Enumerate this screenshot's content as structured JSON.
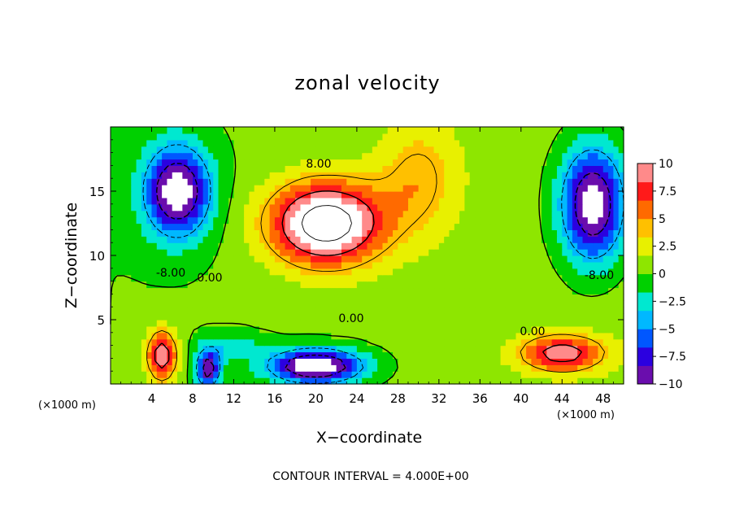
{
  "chart_data": {
    "type": "heatmap",
    "title": "zonal velocity",
    "xlabel": "X−coordinate",
    "ylabel": "Z−coordinate",
    "x_unit": "(×1000 m)",
    "y_unit": "(×1000 m)",
    "xlim": [
      0,
      50
    ],
    "ylim": [
      0,
      20
    ],
    "x_ticks": [
      4,
      8,
      12,
      16,
      20,
      24,
      28,
      32,
      36,
      40,
      44,
      48
    ],
    "y_ticks": [
      5,
      10,
      15
    ],
    "colorbar": {
      "range": [
        -10,
        10
      ],
      "ticks": [
        "10",
        "7.5",
        "5",
        "2.5",
        "0",
        "−2.5",
        "−5",
        "−7.5",
        "−10"
      ],
      "colors": [
        "#6a0dad",
        "#2b00e0",
        "#0057ff",
        "#00b8ff",
        "#00e8d0",
        "#00d000",
        "#8ee600",
        "#e8f000",
        "#ffc000",
        "#ff6a00",
        "#ff1a1a",
        "#ff8a8a"
      ],
      "overflow_color": "#ffffff"
    },
    "contour_interval": "CONTOUR INTERVAL = 4.000E+00",
    "contour_labels": [
      "8.00",
      "-8.00",
      "0.00",
      "0.00",
      "0.00",
      "-8.00"
    ],
    "features": [
      {
        "x": 21,
        "z": 12.5,
        "value": 14,
        "sx": 5.5,
        "sz": 3.2
      },
      {
        "x": 6.5,
        "z": 15,
        "value": -12,
        "sx": 3.2,
        "sz": 3.5
      },
      {
        "x": 47,
        "z": 14,
        "value": -12,
        "sx": 3.2,
        "sz": 4.5
      },
      {
        "x": 5,
        "z": 2.2,
        "value": 10,
        "sx": 1.5,
        "sz": 2.0
      },
      {
        "x": 20,
        "z": 1.4,
        "value": -13,
        "sx": 4.5,
        "sz": 1.3
      },
      {
        "x": 44,
        "z": 2.4,
        "value": 9,
        "sx": 4.0,
        "sz": 1.4
      },
      {
        "x": 9.5,
        "z": 1.2,
        "value": -10,
        "sx": 1.2,
        "sz": 1.5
      },
      {
        "x": 30,
        "z": 16,
        "value": 4,
        "sx": 4.0,
        "sz": 4.5
      },
      {
        "x": 12,
        "z": 3.0,
        "value": -3,
        "sx": 3.0,
        "sz": 1.0
      }
    ]
  }
}
